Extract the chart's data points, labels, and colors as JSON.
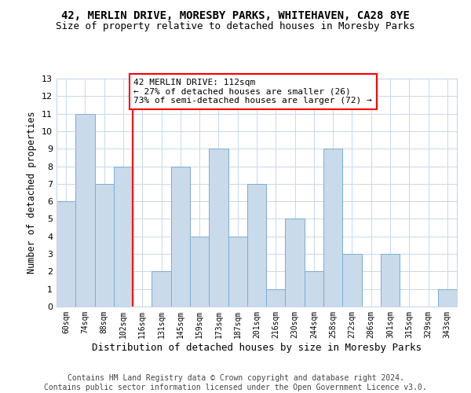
{
  "title": "42, MERLIN DRIVE, MORESBY PARKS, WHITEHAVEN, CA28 8YE",
  "subtitle": "Size of property relative to detached houses in Moresby Parks",
  "xlabel": "Distribution of detached houses by size in Moresby Parks",
  "ylabel": "Number of detached properties",
  "footer": "Contains HM Land Registry data © Crown copyright and database right 2024.\nContains public sector information licensed under the Open Government Licence v3.0.",
  "categories": [
    "60sqm",
    "74sqm",
    "88sqm",
    "102sqm",
    "116sqm",
    "131sqm",
    "145sqm",
    "159sqm",
    "173sqm",
    "187sqm",
    "201sqm",
    "216sqm",
    "230sqm",
    "244sqm",
    "258sqm",
    "272sqm",
    "286sqm",
    "301sqm",
    "315sqm",
    "329sqm",
    "343sqm"
  ],
  "values": [
    6,
    11,
    7,
    8,
    0,
    2,
    8,
    4,
    9,
    4,
    7,
    1,
    5,
    2,
    9,
    3,
    0,
    3,
    0,
    0,
    1
  ],
  "bar_color": "#c9daea",
  "bar_edge_color": "#7aadd4",
  "subject_line_col_index": 4,
  "subject_line_color": "red",
  "annotation_text": "42 MERLIN DRIVE: 112sqm\n← 27% of detached houses are smaller (26)\n73% of semi-detached houses are larger (72) →",
  "annotation_box_color": "white",
  "annotation_box_edge_color": "red",
  "annotation_fontsize": 8.0,
  "ylim": [
    0,
    13
  ],
  "yticks": [
    0,
    1,
    2,
    3,
    4,
    5,
    6,
    7,
    8,
    9,
    10,
    11,
    12,
    13
  ],
  "title_fontsize": 10,
  "subtitle_fontsize": 9,
  "xlabel_fontsize": 9,
  "ylabel_fontsize": 8.5,
  "footer_fontsize": 7,
  "background_color": "white",
  "grid_color": "#c8d8e8"
}
